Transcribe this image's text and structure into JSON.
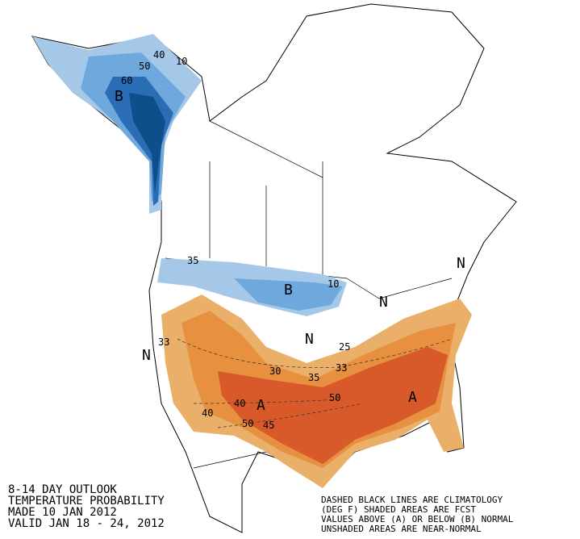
{
  "header": {
    "title_lines": [
      "8-14 DAY OUTLOOK",
      "TEMPERATURE PROBABILITY",
      "MADE  10 JAN 2012",
      "VALID  JAN 18 - 24, 2012"
    ]
  },
  "legend_note": [
    "DASHED BLACK LINES ARE CLIMATOLOGY",
    "(DEG F) SHADED AREAS ARE FCST",
    "VALUES ABOVE (A) OR BELOW (B) NORMAL",
    "UNSHADED AREAS ARE NEAR-NORMAL"
  ],
  "map_labels": [
    "40",
    "10",
    "50",
    "60",
    "B",
    "35",
    "B",
    "10",
    "N",
    "N",
    "33",
    "N",
    "33",
    "35",
    "30",
    "50",
    "A",
    "A",
    "40",
    "40",
    "50",
    "45",
    "N",
    "25"
  ]
}
